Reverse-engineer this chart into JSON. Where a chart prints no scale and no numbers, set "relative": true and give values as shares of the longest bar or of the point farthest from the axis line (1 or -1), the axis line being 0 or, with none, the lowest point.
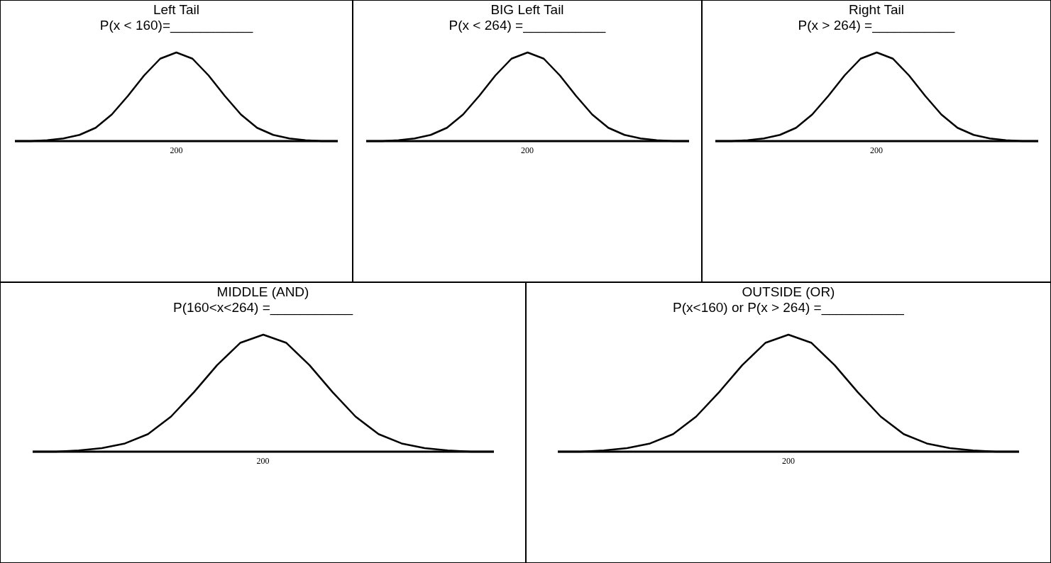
{
  "chart_data": [
    {
      "type": "line",
      "title": "Left Tail",
      "subtitle": "P(x < 160)=___________",
      "annotations": [
        "200"
      ],
      "categories": [
        null,
        null,
        null,
        null,
        null,
        null,
        null,
        null,
        null,
        null,
        null,
        null,
        null,
        null,
        null,
        null,
        null,
        null,
        null,
        null,
        null
      ],
      "values": [
        0,
        0,
        0.01,
        0.03,
        0.07,
        0.15,
        0.3,
        0.51,
        0.74,
        0.93,
        1,
        0.93,
        0.74,
        0.51,
        0.3,
        0.15,
        0.07,
        0.03,
        0.01,
        0,
        0
      ],
      "color": "#000000",
      "relative": true
    },
    {
      "type": "line",
      "title": "BIG Left Tail",
      "subtitle": "P(x < 264) =___________",
      "annotations": [
        "200"
      ],
      "categories": [
        null,
        null,
        null,
        null,
        null,
        null,
        null,
        null,
        null,
        null,
        null,
        null,
        null,
        null,
        null,
        null,
        null,
        null,
        null,
        null,
        null
      ],
      "values": [
        0,
        0,
        0.01,
        0.03,
        0.07,
        0.15,
        0.3,
        0.51,
        0.74,
        0.93,
        1,
        0.93,
        0.74,
        0.51,
        0.3,
        0.15,
        0.07,
        0.03,
        0.01,
        0,
        0
      ],
      "color": "#000000",
      "relative": true
    },
    {
      "type": "line",
      "title": "Right Tail",
      "subtitle": "P(x > 264) =___________",
      "annotations": [
        "200"
      ],
      "categories": [
        null,
        null,
        null,
        null,
        null,
        null,
        null,
        null,
        null,
        null,
        null,
        null,
        null,
        null,
        null,
        null,
        null,
        null,
        null,
        null,
        null
      ],
      "values": [
        0,
        0,
        0.01,
        0.03,
        0.07,
        0.15,
        0.3,
        0.51,
        0.74,
        0.93,
        1,
        0.93,
        0.74,
        0.51,
        0.3,
        0.15,
        0.07,
        0.03,
        0.01,
        0,
        0
      ],
      "color": "#000000",
      "relative": true
    },
    {
      "type": "line",
      "title": "MIDDLE (AND)",
      "subtitle": "P(160<x<264) =___________",
      "annotations": [
        "200"
      ],
      "categories": [
        null,
        null,
        null,
        null,
        null,
        null,
        null,
        null,
        null,
        null,
        null,
        null,
        null,
        null,
        null,
        null,
        null,
        null,
        null,
        null,
        null
      ],
      "values": [
        0,
        0,
        0.01,
        0.03,
        0.07,
        0.15,
        0.3,
        0.51,
        0.74,
        0.93,
        1,
        0.93,
        0.74,
        0.51,
        0.3,
        0.15,
        0.07,
        0.03,
        0.01,
        0,
        0
      ],
      "color": "#000000",
      "relative": true
    },
    {
      "type": "line",
      "title": "OUTSIDE (OR)",
      "subtitle": "P(x<160) or P(x > 264) =___________",
      "annotations": [
        "200"
      ],
      "categories": [
        null,
        null,
        null,
        null,
        null,
        null,
        null,
        null,
        null,
        null,
        null,
        null,
        null,
        null,
        null,
        null,
        null,
        null,
        null,
        null,
        null
      ],
      "values": [
        0,
        0,
        0.01,
        0.03,
        0.07,
        0.15,
        0.3,
        0.51,
        0.74,
        0.93,
        1,
        0.93,
        0.74,
        0.51,
        0.3,
        0.15,
        0.07,
        0.03,
        0.01,
        0,
        0
      ],
      "color": "#000000",
      "relative": true
    }
  ]
}
